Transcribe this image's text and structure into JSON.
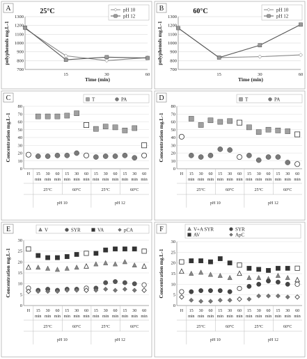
{
  "chart_data": [
    {
      "type": "line",
      "panel_label": "A",
      "title": "25°C",
      "xlabel": "Time (min)",
      "ylabel": "polyphenols  mg.L-1",
      "x_ticks": [
        "15",
        "30",
        "60"
      ],
      "ylim": [
        700,
        1300
      ],
      "y_ticks": [
        700,
        800,
        900,
        1000,
        1100,
        1200,
        1300
      ],
      "legend_position": "top-right",
      "series": [
        {
          "name": "pH 10",
          "marker": "diamond",
          "color": "#888888",
          "points": [
            [
              0,
              1165
            ],
            [
              1,
              855
            ],
            [
              2,
              800
            ],
            [
              3,
              835
            ]
          ]
        },
        {
          "name": "pH 12",
          "marker": "square",
          "color": "#555555",
          "points": [
            [
              0,
              1175
            ],
            [
              1,
              810
            ],
            [
              2,
              840
            ],
            [
              3,
              830
            ]
          ]
        }
      ]
    },
    {
      "type": "line",
      "panel_label": "B",
      "title": "60°C",
      "xlabel": "Time (min)",
      "ylabel": "polyphenols  mg.L-1",
      "x_ticks": [
        "15",
        "30",
        "60"
      ],
      "ylim": [
        700,
        1300
      ],
      "y_ticks": [
        700,
        800,
        900,
        1000,
        1100,
        1200,
        1300
      ],
      "legend_position": "top-right",
      "series": [
        {
          "name": "pH 10",
          "marker": "diamond",
          "color": "#888888",
          "points": [
            [
              0,
              1170
            ],
            [
              1,
              835
            ],
            [
              2,
              845
            ],
            [
              3,
              865
            ]
          ]
        },
        {
          "name": "pH 12",
          "marker": "square",
          "color": "#555555",
          "points": [
            [
              0,
              1170
            ],
            [
              1,
              835
            ],
            [
              2,
              975
            ],
            [
              3,
              1210
            ]
          ]
        }
      ]
    },
    {
      "type": "scatter",
      "panel_label": "C",
      "ylabel": "Concentration mg.L-1",
      "ylim": [
        0,
        80
      ],
      "y_ticks": [
        0,
        10,
        20,
        30,
        40,
        50,
        60,
        70,
        80
      ],
      "categories": [
        "H",
        "15 min",
        "30 min",
        "60 min",
        "15 min",
        "30 min",
        "60 min",
        "15 min",
        "30 min",
        "60 min",
        "15 min",
        "30 min",
        "60 min"
      ],
      "temperature_labels": [
        "25°C",
        "60°C",
        "25°C",
        "60°C"
      ],
      "ph_labels": [
        "pH 10",
        "pH 12"
      ],
      "legend_position": "top-right",
      "series": [
        {
          "name": "T",
          "marker": "square",
          "color": "#a0a0a0",
          "values": [
            null,
            67,
            67,
            67,
            68,
            71,
            56,
            51,
            54,
            53,
            49,
            52,
            30
          ]
        },
        {
          "name": "PA",
          "marker": "circle",
          "color": "#7a7a7a",
          "values": [
            18,
            16,
            16,
            17,
            17,
            20,
            17,
            15,
            16,
            16,
            17,
            14,
            17
          ]
        }
      ]
    },
    {
      "type": "scatter",
      "panel_label": "D",
      "ylabel": "Concentration mg.L-1",
      "ylim": [
        0,
        80
      ],
      "y_ticks": [
        0,
        10,
        20,
        30,
        40,
        50,
        60,
        70,
        80
      ],
      "categories": [
        "H",
        "15 min",
        "30 min",
        "60 min",
        "15 min",
        "30 min",
        "60 min",
        "15 min",
        "30 min",
        "60 min",
        "15 min",
        "30 min",
        "60 min"
      ],
      "temperature_labels": [
        "25°C",
        "60°C",
        "25°C",
        "60°C"
      ],
      "ph_labels": [
        "pH 10",
        "pH 12"
      ],
      "legend_position": "top-right",
      "series": [
        {
          "name": "T",
          "marker": "square",
          "color": "#a0a0a0",
          "values": [
            null,
            64,
            56,
            62,
            60,
            61,
            59,
            53,
            47,
            50,
            49,
            48,
            44
          ]
        },
        {
          "name": "PA",
          "marker": "circle",
          "color": "#7a7a7a",
          "values": [
            41,
            17,
            15,
            17,
            25,
            24,
            15,
            17,
            11,
            15,
            15,
            8,
            6
          ]
        }
      ]
    },
    {
      "type": "scatter",
      "panel_label": "E",
      "ylabel": "Concentration mg.L-1",
      "ylim": [
        0,
        30
      ],
      "y_ticks": [
        0,
        5,
        10,
        15,
        20,
        25,
        30
      ],
      "categories": [
        "H",
        "15 min",
        "30 min",
        "60 min",
        "15 min",
        "30 min",
        "60 min",
        "15 min",
        "30 min",
        "60 min",
        "15 min",
        "30 min",
        "60 min"
      ],
      "temperature_labels": [
        "25°C",
        "60°C",
        "25°C",
        "60°C"
      ],
      "ph_labels": [
        "pH 10",
        "pH 12"
      ],
      "legend_position": "top",
      "series": [
        {
          "name": "V",
          "marker": "triangle",
          "color": "#888888",
          "values": [
            17.5,
            17.5,
            17,
            16.5,
            17,
            17.5,
            18,
            19,
            19.5,
            19,
            20,
            18.5,
            18
          ]
        },
        {
          "name": "SYR",
          "marker": "circle",
          "color": "#555555",
          "values": [
            8,
            7,
            7.5,
            7,
            7.5,
            7.5,
            8,
            8,
            10.5,
            11,
            10.5,
            10,
            9.5
          ]
        },
        {
          "name": "VA",
          "marker": "square",
          "color": "#333333",
          "values": [
            26,
            23,
            22,
            22,
            22.5,
            23.5,
            24,
            24,
            25.5,
            26,
            26,
            26,
            25
          ]
        },
        {
          "name": "pCA",
          "marker": "diamond",
          "color": "#777777",
          "values": [
            6.5,
            6.5,
            6.5,
            6.5,
            7,
            7,
            7,
            7,
            7.5,
            7,
            7.5,
            7,
            7
          ]
        }
      ]
    },
    {
      "type": "scatter",
      "panel_label": "F",
      "ylabel": "Concentration mg.L-1",
      "ylim": [
        0,
        30
      ],
      "y_ticks": [
        0,
        5,
        10,
        15,
        20,
        25,
        30
      ],
      "categories": [
        "H",
        "15 min",
        "30 min",
        "60 min",
        "15 min",
        "30 min",
        "60 min",
        "15 min",
        "30 min",
        "60 min",
        "15 min",
        "30 min",
        "60 min"
      ],
      "temperature_labels": [
        "25°C",
        "60°C",
        "25°C",
        "60°C"
      ],
      "ph_labels": [
        "pH 10",
        "pH 12"
      ],
      "legend_position": "top",
      "series": [
        {
          "name": "V+A SYR",
          "marker": "triangle",
          "color": "#888888",
          "values": [
            16,
            15,
            15.5,
            14.5,
            14,
            13,
            15,
            13,
            13,
            12.5,
            14,
            13,
            12
          ]
        },
        {
          "name": "SYR",
          "marker": "circle",
          "color": "#444444",
          "values": [
            6.5,
            6.5,
            7,
            7,
            7,
            6.5,
            8,
            9,
            10,
            11.5,
            11,
            10,
            10
          ]
        },
        {
          "name": "AV",
          "marker": "square",
          "color": "#333333",
          "values": [
            20.5,
            21,
            21,
            20.5,
            22,
            20,
            19,
            17.5,
            17,
            16.5,
            17.5,
            17.5,
            17.5
          ]
        },
        {
          "name": "ApC",
          "marker": "diamond",
          "color": "#777777",
          "values": [
            4,
            2.5,
            2,
            2,
            2.5,
            2.5,
            3,
            3,
            4.5,
            4.5,
            4.5,
            4,
            4
          ]
        }
      ]
    }
  ]
}
